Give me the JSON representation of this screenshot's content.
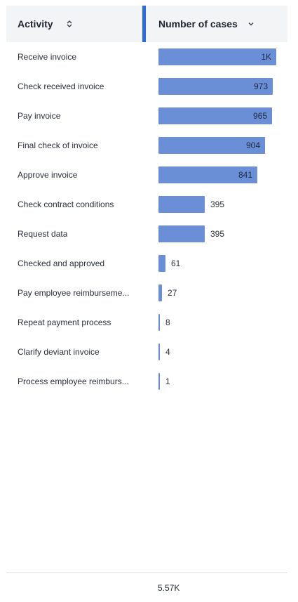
{
  "header": {
    "activity_label": "Activity",
    "cases_label": "Number of cases"
  },
  "colors": {
    "bar": "#6a8fd6",
    "accent": "#2f6ad9",
    "header_bg": "#f3f4f6"
  },
  "rows": [
    {
      "activity": "Receive invoice",
      "value": 1000,
      "display": "1K"
    },
    {
      "activity": "Check received invoice",
      "value": 973,
      "display": "973"
    },
    {
      "activity": "Pay invoice",
      "value": 965,
      "display": "965"
    },
    {
      "activity": "Final check of invoice",
      "value": 904,
      "display": "904"
    },
    {
      "activity": "Approve invoice",
      "value": 841,
      "display": "841"
    },
    {
      "activity": "Check contract conditions",
      "value": 395,
      "display": "395"
    },
    {
      "activity": "Request data",
      "value": 395,
      "display": "395"
    },
    {
      "activity": "Checked and approved",
      "value": 61,
      "display": "61"
    },
    {
      "activity": "Pay employee reimburseme...",
      "value": 27,
      "display": "27"
    },
    {
      "activity": "Repeat payment process",
      "value": 8,
      "display": "8"
    },
    {
      "activity": "Clarify deviant invoice",
      "value": 4,
      "display": "4"
    },
    {
      "activity": "Process employee reimburs...",
      "value": 1,
      "display": "1"
    }
  ],
  "footer": {
    "total": "5.57K"
  }
}
